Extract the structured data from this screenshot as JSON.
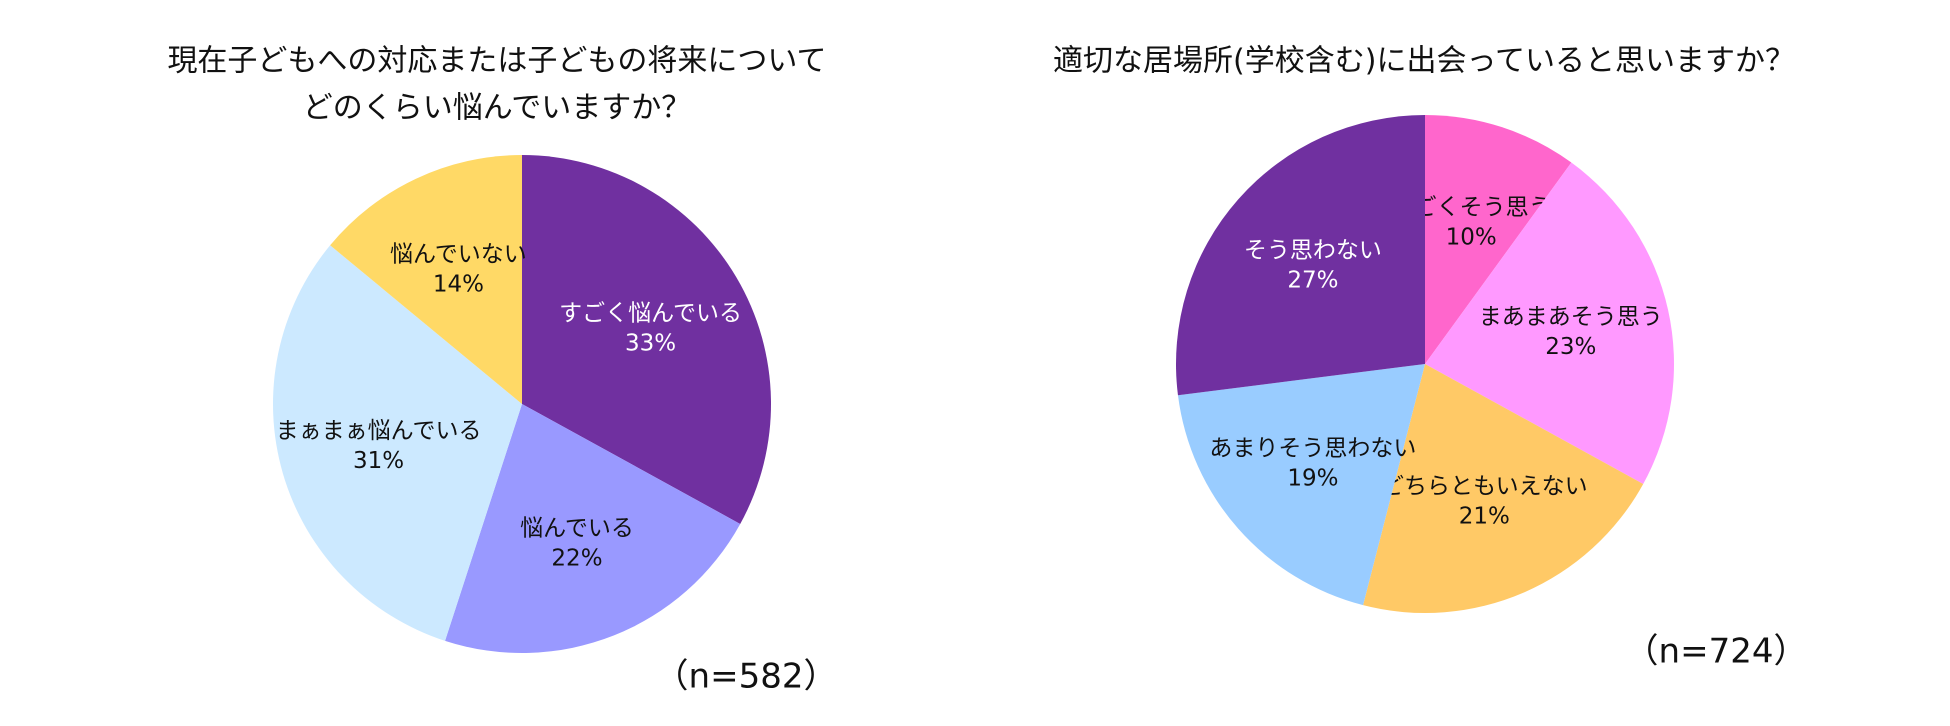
{
  "chart_data": [
    {
      "type": "pie",
      "title": [
        "現在子どもへの対応または子どもの将来について",
        "どのくらい悩んでいますか？"
      ],
      "categories": [
        "すごく悩んでいる",
        "悩んでいる",
        "まぁまぁ悩んでいる",
        "悩んでいない"
      ],
      "values": [
        33,
        22,
        31,
        14
      ],
      "value_labels": [
        "33%",
        "22%",
        "31%",
        "14%"
      ],
      "colors": [
        "#7030a0",
        "#9999ff",
        "#cce9ff",
        "#ffd966"
      ],
      "note": "（n=582）"
    },
    {
      "type": "pie",
      "title": [
        "適切な居場所(学校含む)に出会っていると思いますか？"
      ],
      "categories": [
        "すごくそう思う",
        "まあまあそう思う",
        "どちらともいえない",
        "あまりそう思わない",
        "そう思わない"
      ],
      "values": [
        10,
        23,
        21,
        19,
        27
      ],
      "value_labels": [
        "10%",
        "23%",
        "21%",
        "19%",
        "27%"
      ],
      "colors": [
        "#ff66cc",
        "#ff99ff",
        "#ffc966",
        "#99ccff",
        "#7030a0"
      ],
      "note": "（n=724）"
    }
  ]
}
